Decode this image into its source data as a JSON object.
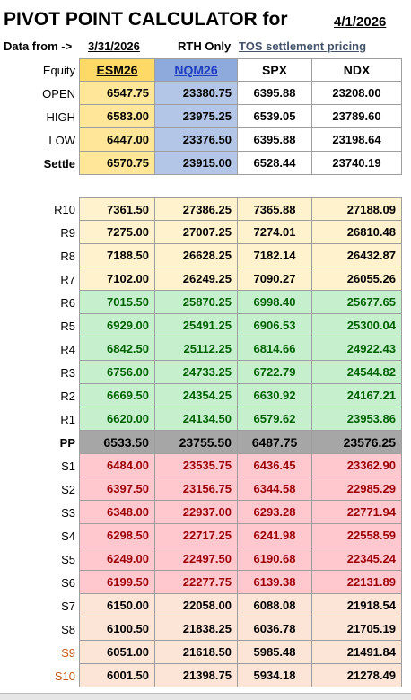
{
  "header": {
    "title": "PIVOT POINT CALCULATOR for",
    "date": "4/1/2026"
  },
  "info": {
    "label": "Data from ->",
    "date": "3/31/2026",
    "session": "RTH Only",
    "source": "TOS settlement pricing"
  },
  "table": {
    "columns": [
      "Equity",
      "ESM26",
      "NQM26",
      "SPX",
      "NDX"
    ],
    "rows": [
      [
        "OPEN",
        "6547.75",
        "23380.75",
        "6395.88",
        "23208.00"
      ],
      [
        "HIGH",
        "6583.00",
        "23975.25",
        "6539.05",
        "23789.60"
      ],
      [
        "LOW",
        "6447.00",
        "23376.50",
        "6395.88",
        "23198.64"
      ],
      [
        "Settle",
        "6570.75",
        "23915.00",
        "6528.44",
        "23740.19"
      ],
      [
        "R10",
        "7361.50",
        "27386.25",
        "7365.88",
        "27188.09"
      ],
      [
        "R9",
        "7275.00",
        "27007.25",
        "7274.01",
        "26810.48"
      ],
      [
        "R8",
        "7188.50",
        "26628.25",
        "7182.14",
        "26432.87"
      ],
      [
        "R7",
        "7102.00",
        "26249.25",
        "7090.27",
        "26055.26"
      ],
      [
        "R6",
        "7015.50",
        "25870.25",
        "6998.40",
        "25677.65"
      ],
      [
        "R5",
        "6929.00",
        "25491.25",
        "6906.53",
        "25300.04"
      ],
      [
        "R4",
        "6842.50",
        "25112.25",
        "6814.66",
        "24922.43"
      ],
      [
        "R3",
        "6756.00",
        "24733.25",
        "6722.79",
        "24544.82"
      ],
      [
        "R2",
        "6669.50",
        "24354.25",
        "6630.92",
        "24167.21"
      ],
      [
        "R1",
        "6620.00",
        "24134.50",
        "6579.62",
        "23953.86"
      ],
      [
        "PP",
        "6533.50",
        "23755.50",
        "6487.75",
        "23576.25"
      ],
      [
        "S1",
        "6484.00",
        "23535.75",
        "6436.45",
        "23362.90"
      ],
      [
        "S2",
        "6397.50",
        "23156.75",
        "6344.58",
        "22985.29"
      ],
      [
        "S3",
        "6348.00",
        "22937.00",
        "6293.28",
        "22771.94"
      ],
      [
        "S4",
        "6298.50",
        "22717.25",
        "6241.98",
        "22558.59"
      ],
      [
        "S5",
        "6249.00",
        "22497.50",
        "6190.68",
        "22345.24"
      ],
      [
        "S6",
        "6199.50",
        "22277.75",
        "6139.38",
        "22131.89"
      ],
      [
        "S7",
        "6150.00",
        "22058.00",
        "6088.08",
        "21918.54"
      ],
      [
        "S8",
        "6100.50",
        "21838.25",
        "6036.78",
        "21705.19"
      ],
      [
        "S9",
        "6051.00",
        "21618.50",
        "5985.48",
        "21491.84"
      ],
      [
        "S10",
        "6001.50",
        "21398.75",
        "5934.18",
        "21278.49"
      ]
    ]
  }
}
